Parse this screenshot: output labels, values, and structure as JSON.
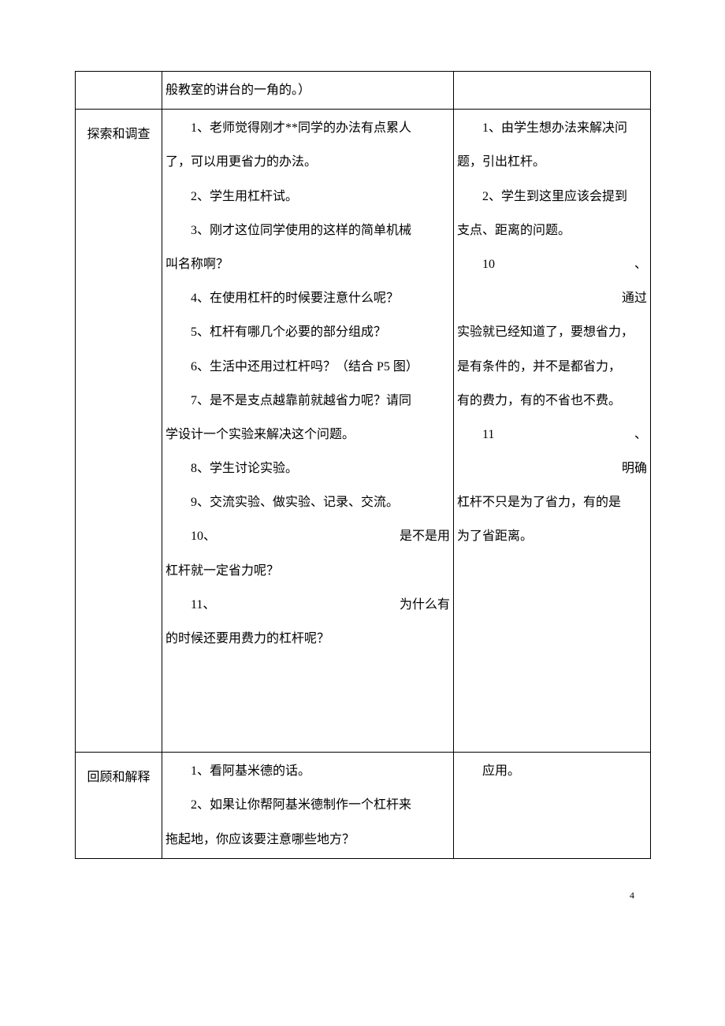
{
  "row1": {
    "col1": "",
    "col2_line1": "般教室的讲台的一角的。）",
    "col3": ""
  },
  "row2": {
    "col1": "探索和调查",
    "col2_l1": "1、老师觉得刚才**同学的办法有点累人",
    "col2_l2": "了，可以用更省力的办法。",
    "col2_l3": "2、学生用杠杆试。",
    "col2_l4": "3、刚才这位同学使用的这样的简单机械",
    "col2_l5": "叫名称啊？",
    "col2_l6": "4、在使用杠杆的时候要注意什么呢？",
    "col2_l7": "5、杠杆有哪几个必要的部分组成？",
    "col2_l8": "6、生活中还用过杠杆吗？（结合 P5 图）",
    "col2_l9": "7、是不是支点越靠前就越省力呢？请同",
    "col2_l10": "学设计一个实验来解决这个问题。",
    "col2_l11": "8、学生讨论实验。",
    "col2_l12": "9、交流实验、做实验、记录、交流。",
    "col2_l13a": "10、",
    "col2_l13b": "是不是用",
    "col2_l14": "杠杆就一定省力呢？",
    "col2_l15a": "11、",
    "col2_l15b": "为什么有",
    "col2_l16": "的时候还要用费力的杠杆呢？",
    "col3_l1": "1、由学生想办法来解决问",
    "col3_l2": "题，引出杠杆。",
    "col3_l3": "2、学生到这里应该会提到",
    "col3_l4": "支点、距离的问题。",
    "col3_l5a": "10",
    "col3_l5b": "、",
    "col3_l6": "通过",
    "col3_l7": "实验就已经知道了，要想省力，",
    "col3_l8": "是有条件的，并不是都省力，",
    "col3_l9": "有的费力，有的不省也不费。",
    "col3_l10a": "11",
    "col3_l10b": "、",
    "col3_l11": "明确",
    "col3_l12": "杠杆不只是为了省力，有的是",
    "col3_l13": "为了省距离。"
  },
  "row3": {
    "col1": "回顾和解释",
    "col2_l1": "1、看阿基米德的话。",
    "col2_l2": "2、如果让你帮阿基米德制作一个杠杆来",
    "col2_l3": "拖起地，你应该要注意哪些地方？",
    "col3_l1": "应用。"
  },
  "page_number": "4"
}
